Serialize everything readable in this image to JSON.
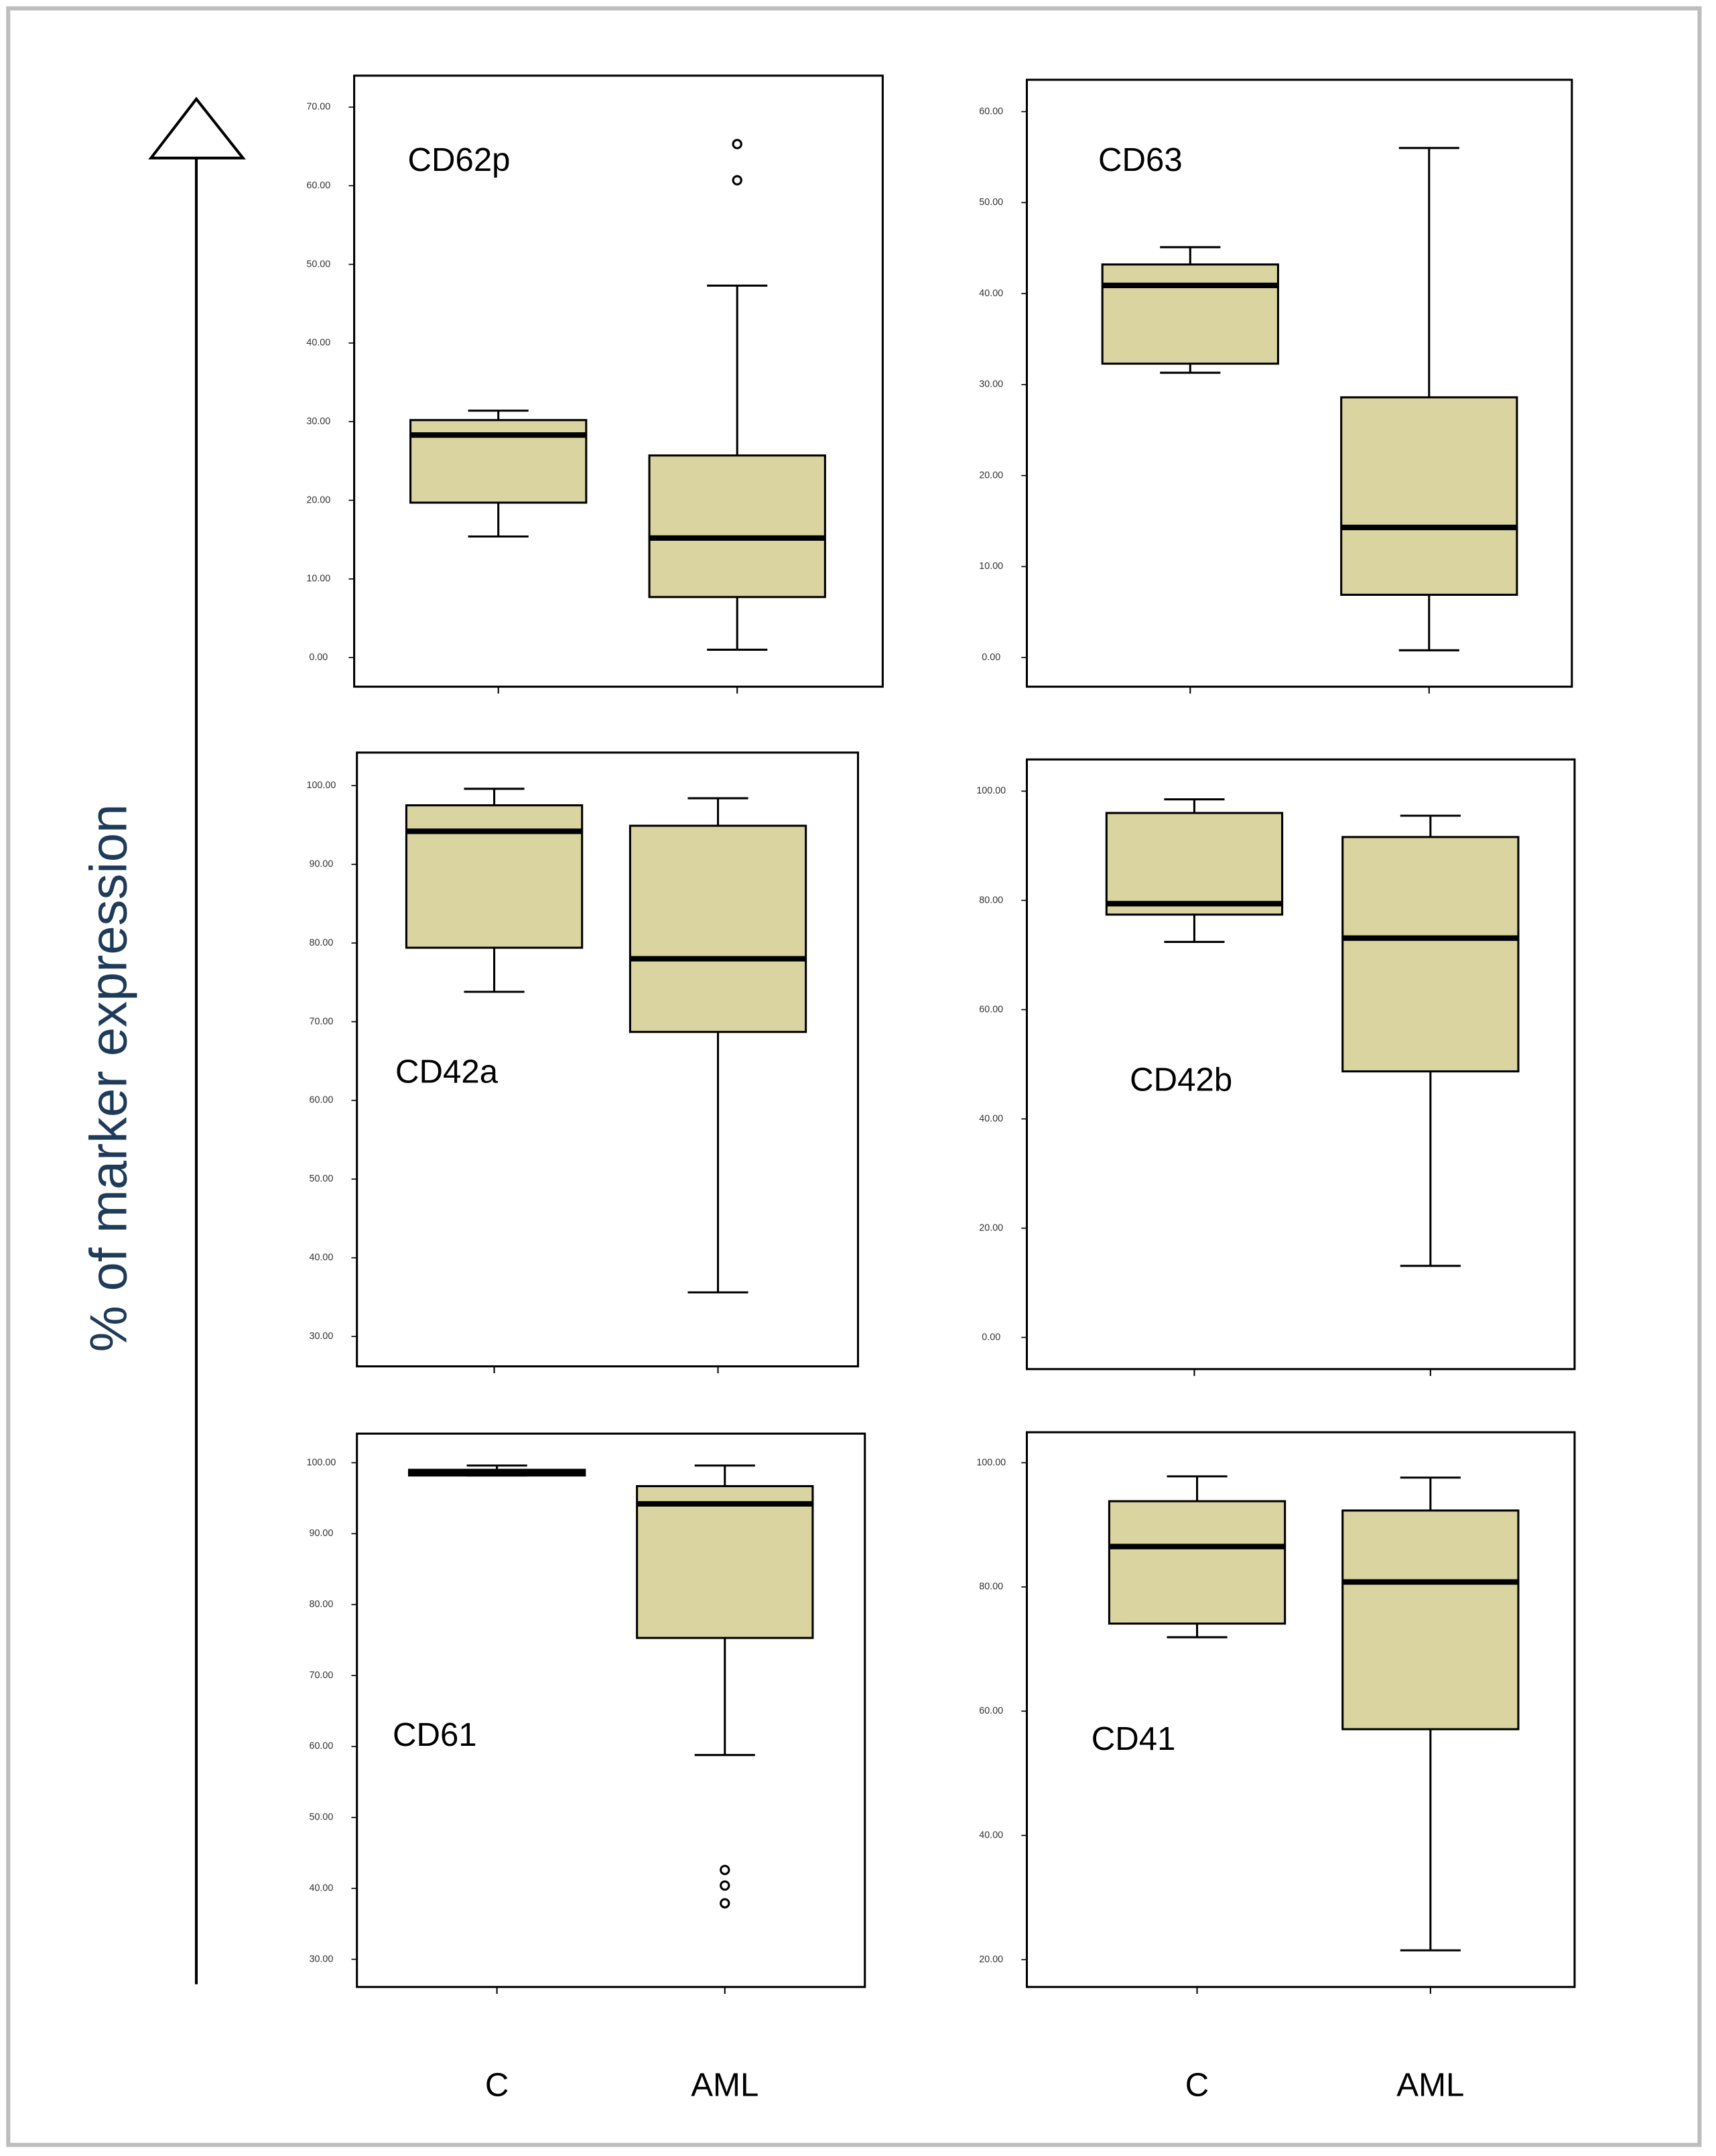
{
  "y_label": "% of marker expression",
  "chart_data": [
    {
      "type": "box",
      "title": "CD62p",
      "color": "#d9d4a0",
      "ylim": [
        -3.7,
        74
      ],
      "yticks": [
        {
          "value": 70,
          "label": "70.00"
        },
        {
          "value": 60,
          "label": "60.00"
        },
        {
          "value": 50,
          "label": "50.00"
        },
        {
          "value": 40,
          "label": "40.00"
        },
        {
          "value": 30,
          "label": "30.00"
        },
        {
          "value": 20,
          "label": "20.00"
        },
        {
          "value": 10,
          "label": "10.00"
        },
        {
          "value": 0,
          "label": "0.00"
        }
      ],
      "boxes": [
        {
          "whislo": 15.4,
          "q1": 19.7,
          "med": 28.3,
          "q3": 30.2,
          "whishi": 31.4,
          "fliers": []
        },
        {
          "whislo": 1.0,
          "q1": 7.7,
          "med": 15.2,
          "q3": 25.7,
          "whishi": 47.3,
          "fliers": [
            60.7,
            65.3
          ]
        }
      ]
    },
    {
      "type": "box",
      "title": "CD63",
      "color": "#d9d4a0",
      "ylim": [
        -3.2,
        63.5
      ],
      "yticks": [
        {
          "value": 60,
          "label": "60.00"
        },
        {
          "value": 50,
          "label": "50.00"
        },
        {
          "value": 40,
          "label": "40.00"
        },
        {
          "value": 30,
          "label": "30.00"
        },
        {
          "value": 20,
          "label": "20.00"
        },
        {
          "value": 10,
          "label": "10.00"
        },
        {
          "value": 0,
          "label": "0.00"
        }
      ],
      "boxes": [
        {
          "whislo": 31.3,
          "q1": 32.3,
          "med": 40.9,
          "q3": 43.2,
          "whishi": 45.1,
          "fliers": []
        },
        {
          "whislo": 0.8,
          "q1": 6.9,
          "med": 14.3,
          "q3": 28.6,
          "whishi": 56.0,
          "fliers": []
        }
      ]
    },
    {
      "type": "box",
      "title": "CD42a",
      "color": "#d9d4a0",
      "ylim": [
        26.2,
        104.2
      ],
      "yticks": [
        {
          "value": 100,
          "label": "100.00"
        },
        {
          "value": 90,
          "label": "90.00"
        },
        {
          "value": 80,
          "label": "80.00"
        },
        {
          "value": 70,
          "label": "70.00"
        },
        {
          "value": 60,
          "label": "60.00"
        },
        {
          "value": 50,
          "label": "50.00"
        },
        {
          "value": 40,
          "label": "40.00"
        },
        {
          "value": 30,
          "label": "30.00"
        }
      ],
      "boxes": [
        {
          "whislo": 73.8,
          "q1": 79.4,
          "med": 94.2,
          "q3": 97.5,
          "whishi": 99.6,
          "fliers": []
        },
        {
          "whislo": 35.6,
          "q1": 68.7,
          "med": 78.0,
          "q3": 94.9,
          "whishi": 98.4,
          "fliers": []
        }
      ]
    },
    {
      "type": "box",
      "title": "CD42b",
      "color": "#d9d4a0",
      "ylim": [
        -5.8,
        105.8
      ],
      "yticks": [
        {
          "value": 100,
          "label": "100.00"
        },
        {
          "value": 80,
          "label": "80.00"
        },
        {
          "value": 60,
          "label": "60.00"
        },
        {
          "value": 40,
          "label": "40.00"
        },
        {
          "value": 20,
          "label": "20.00"
        },
        {
          "value": 0,
          "label": "0.00"
        }
      ],
      "boxes": [
        {
          "whislo": 72.4,
          "q1": 77.4,
          "med": 79.4,
          "q3": 96.0,
          "whishi": 98.5,
          "fliers": []
        },
        {
          "whislo": 13.1,
          "q1": 48.7,
          "med": 73.1,
          "q3": 91.6,
          "whishi": 95.5,
          "fliers": []
        }
      ]
    },
    {
      "type": "box",
      "title": "CD61",
      "color": "#d9d4a0",
      "ylim": [
        26.1,
        104.1
      ],
      "categories": [
        "C",
        "AML"
      ],
      "yticks": [
        {
          "value": 100,
          "label": "100.00"
        },
        {
          "value": 90,
          "label": "90.00"
        },
        {
          "value": 80,
          "label": "80.00"
        },
        {
          "value": 70,
          "label": "70.00"
        },
        {
          "value": 60,
          "label": "60.00"
        },
        {
          "value": 50,
          "label": "50.00"
        },
        {
          "value": 40,
          "label": "40.00"
        },
        {
          "value": 30,
          "label": "30.00"
        }
      ],
      "boxes": [
        {
          "whislo": 98.2,
          "q1": 98.2,
          "med": 98.5,
          "q3": 99.0,
          "whishi": 99.6,
          "fliers": []
        },
        {
          "whislo": 58.8,
          "q1": 75.3,
          "med": 94.2,
          "q3": 96.7,
          "whishi": 99.6,
          "fliers": [
            42.6,
            40.4,
            37.9
          ]
        }
      ]
    },
    {
      "type": "box",
      "title": "CD41",
      "color": "#d9d4a0",
      "ylim": [
        15.6,
        104.9
      ],
      "categories": [
        "C",
        "AML"
      ],
      "yticks": [
        {
          "value": 100,
          "label": "100.00"
        },
        {
          "value": 80,
          "label": "80.00"
        },
        {
          "value": 60,
          "label": "60.00"
        },
        {
          "value": 40,
          "label": "40.00"
        },
        {
          "value": 20,
          "label": "20.00"
        }
      ],
      "boxes": [
        {
          "whislo": 71.9,
          "q1": 74.1,
          "med": 86.5,
          "q3": 93.8,
          "whishi": 97.8,
          "fliers": []
        },
        {
          "whislo": 21.5,
          "q1": 57.1,
          "med": 80.8,
          "q3": 92.3,
          "whishi": 97.6,
          "fliers": []
        }
      ]
    }
  ]
}
